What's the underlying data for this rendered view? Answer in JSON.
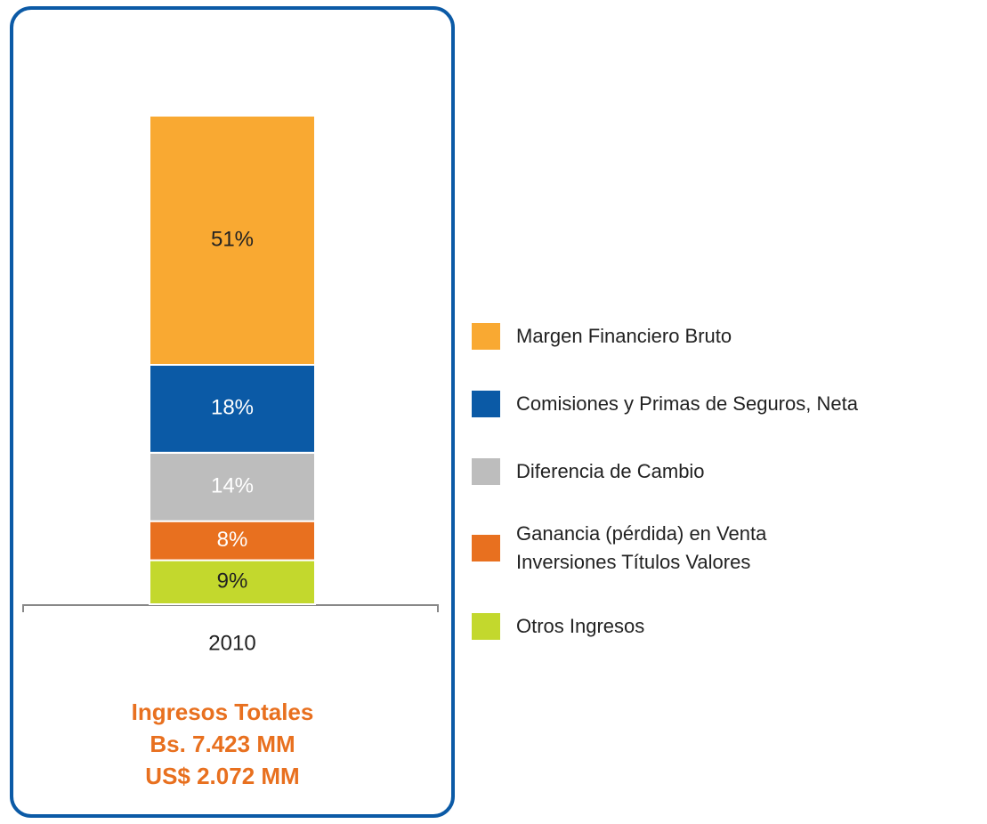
{
  "chart_data": {
    "type": "bar",
    "stacked": true,
    "categories": [
      "2010"
    ],
    "ylim": [
      0,
      100
    ],
    "series": [
      {
        "name": "Otros Ingresos",
        "color": "#c3d82d",
        "label_color": "#222222",
        "values": [
          9
        ],
        "value_labels": [
          "9%"
        ]
      },
      {
        "name": "Ganancia (pérdida) en Venta Inversiones Títulos Valores",
        "color": "#e8701f",
        "label_color": "#ffffff",
        "values": [
          8
        ],
        "value_labels": [
          "8%"
        ]
      },
      {
        "name": "Diferencia de Cambio",
        "color": "#bdbdbd",
        "label_color": "#ffffff",
        "values": [
          14
        ],
        "value_labels": [
          "14%"
        ]
      },
      {
        "name": "Comisiones y Primas de Seguros, Neta",
        "color": "#0b5aa6",
        "label_color": "#ffffff",
        "values": [
          18
        ],
        "value_labels": [
          "18%"
        ]
      },
      {
        "name": "Margen Financiero Bruto",
        "color": "#f9a932",
        "label_color": "#222222",
        "values": [
          51
        ],
        "value_labels": [
          "51%"
        ]
      }
    ],
    "annotations": [
      "Ingresos Totales",
      "Bs. 7.423 MM",
      "US$ 2.072 MM"
    ],
    "annotation_color": "#e8701f"
  }
}
